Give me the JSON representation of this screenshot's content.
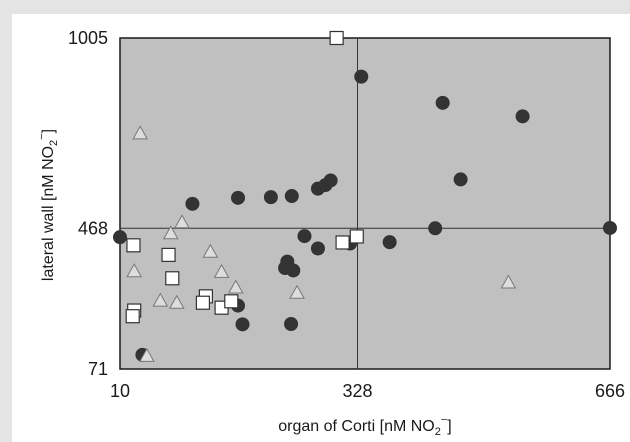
{
  "chart_data": {
    "type": "scatter",
    "xlabel": "organ of Corti [nM NO",
    "ylabel": "lateral wall [nM NO",
    "label_subscript": "2",
    "label_superscript": "−",
    "label_close": "]",
    "xlim": [
      10,
      666
    ],
    "ylim": [
      71,
      1005
    ],
    "x_ticks": [
      "10",
      "328",
      "666"
    ],
    "y_ticks": [
      "71",
      "468",
      "1005"
    ],
    "x_ref": 328,
    "y_ref": 468,
    "colors": {
      "plot_background": "#c0c0c0",
      "circle_fill": "#333333",
      "square_fill": "#ffffff",
      "triangle_fill": "#dddddd",
      "marker_stroke": "#333333"
    },
    "series": [
      {
        "marker": "circle",
        "points": [
          [
            10,
            443
          ],
          [
            40,
            111
          ],
          [
            107,
            537
          ],
          [
            168,
            554
          ],
          [
            212,
            556
          ],
          [
            240,
            559
          ],
          [
            275,
            580
          ],
          [
            333,
            896
          ],
          [
            257,
            446
          ],
          [
            231,
            356
          ],
          [
            242,
            349
          ],
          [
            318,
            425
          ],
          [
            174,
            197
          ],
          [
            168,
            250
          ],
          [
            239,
            198
          ],
          [
            285,
            590
          ],
          [
            292,
            603
          ],
          [
            371,
            429
          ],
          [
            442,
            822
          ],
          [
            466,
            606
          ],
          [
            549,
            784
          ],
          [
            432,
            468
          ],
          [
            666,
            469
          ],
          [
            275,
            411
          ],
          [
            234,
            374
          ]
        ]
      },
      {
        "marker": "square",
        "points": [
          [
            28,
            420
          ],
          [
            29,
            236
          ],
          [
            27,
            220
          ],
          [
            80,
            327
          ],
          [
            75,
            393
          ],
          [
            125,
            276
          ],
          [
            146,
            244
          ],
          [
            121,
            258
          ],
          [
            159,
            262
          ],
          [
            300,
            1005
          ],
          [
            308,
            428
          ],
          [
            327,
            445
          ]
        ]
      },
      {
        "marker": "triangle",
        "points": [
          [
            37,
            736
          ],
          [
            46,
            108
          ],
          [
            29,
            347
          ],
          [
            78,
            454
          ],
          [
            93,
            485
          ],
          [
            131,
            402
          ],
          [
            146,
            345
          ],
          [
            165,
            301
          ],
          [
            64,
            264
          ],
          [
            86,
            258
          ],
          [
            247,
            286
          ],
          [
            530,
            315
          ]
        ]
      }
    ]
  }
}
